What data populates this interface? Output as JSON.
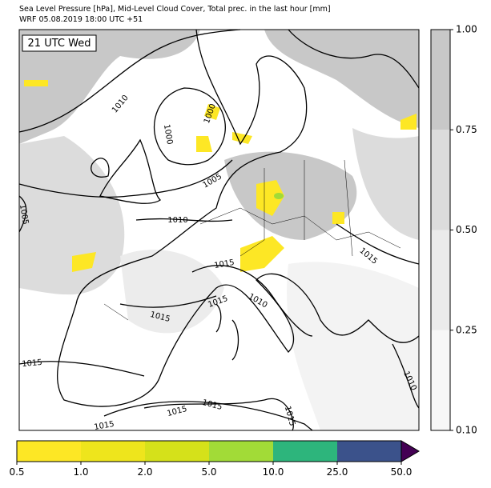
{
  "header": {
    "title": "Sea Level Pressure [hPa], Mid-Level Cloud Cover, Total prec. in the last hour [mm]",
    "subtitle": "WRF 05.08.2019 18:00 UTC +51"
  },
  "map": {
    "time_label": "21 UTC Wed",
    "contour_labels": [
      "1010",
      "1000",
      "1000",
      "1005",
      "1005",
      "1010",
      "1015",
      "1015",
      "1015",
      "1010",
      "1015",
      "1015",
      "1015",
      "1015",
      "1015",
      "1015",
      "1010"
    ]
  },
  "cloud_colorbar": {
    "colors": [
      "#f7f7f7",
      "#ebebeb",
      "#dcdcdc",
      "#c8c8c8"
    ],
    "ticks": [
      {
        "value": 0.1,
        "label": "0.10"
      },
      {
        "value": 0.25,
        "label": "0.25"
      },
      {
        "value": 0.5,
        "label": "0.50"
      },
      {
        "value": 0.75,
        "label": "0.75"
      },
      {
        "value": 1,
        "label": "1.00"
      }
    ]
  },
  "precip_colorbar": {
    "colors": [
      "#fde725",
      "#eee51c",
      "#d5e11a",
      "#a2db37",
      "#2db57c",
      "#3b528b"
    ],
    "extend_color": "#440154",
    "ticks": [
      0.5,
      {
        "value": 1,
        "label": "1.0"
      },
      {
        "value": 2,
        "label": "2.0"
      },
      {
        "value": 5,
        "label": "5.0"
      },
      {
        "value": 10,
        "label": "10.0"
      },
      {
        "value": 25,
        "label": "25.0"
      },
      {
        "value": 50,
        "label": "50.0"
      }
    ]
  }
}
